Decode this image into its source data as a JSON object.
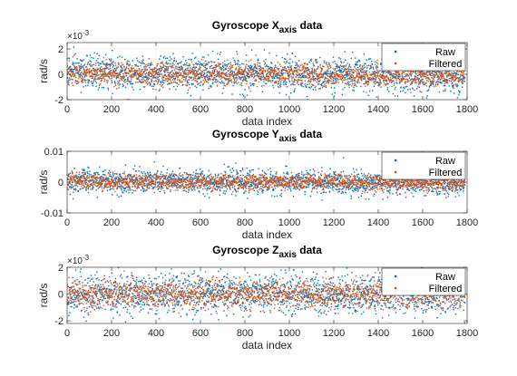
{
  "colors": {
    "raw": "#0072BD",
    "filtered": "#D95319",
    "axis": "#262626",
    "grid": "#e6e6e6"
  },
  "chart_data": [
    {
      "type": "scatter",
      "title": "Gyroscope X",
      "title_sub": "axis",
      "title_suffix": " data",
      "xlabel": "data index",
      "ylabel": "rad/s",
      "xlim": [
        0,
        1800
      ],
      "ylim": [
        -0.002,
        0.0025
      ],
      "x_ticks": [
        "0",
        "200",
        "400",
        "600",
        "800",
        "1000",
        "1200",
        "1400",
        "1600",
        "1800"
      ],
      "y_ticks": [
        {
          "value": -0.002,
          "label": "-2"
        },
        {
          "value": 0,
          "label": "0"
        },
        {
          "value": 0.002,
          "label": "2"
        }
      ],
      "exponent_label": "×10",
      "exponent_power": "-3",
      "legend_position": "top-right",
      "series": [
        {
          "name": "Raw",
          "points": 1790,
          "mean": 0.0002,
          "std_dev": 0.00065,
          "mean_end": -0.0002
        },
        {
          "name": "Filtered",
          "points": 1790,
          "mean": 0.0001,
          "std_dev": 0.00045,
          "mean_end": -0.0001
        }
      ]
    },
    {
      "type": "scatter",
      "title": "Gyroscope Y",
      "title_sub": "axis",
      "title_suffix": " data",
      "xlabel": "data index",
      "ylabel": "rad/s",
      "xlim": [
        0,
        1800
      ],
      "ylim": [
        -0.01,
        0.01
      ],
      "x_ticks": [
        "0",
        "200",
        "400",
        "600",
        "800",
        "1000",
        "1200",
        "1400",
        "1600",
        "1800"
      ],
      "y_ticks": [
        {
          "value": -0.01,
          "label": "-0.01"
        },
        {
          "value": 0,
          "label": "0"
        },
        {
          "value": 0.01,
          "label": "0.01"
        }
      ],
      "exponent_label": "",
      "exponent_power": "",
      "legend_position": "top-right",
      "series": [
        {
          "name": "Raw",
          "points": 1790,
          "mean": 0.0005,
          "std_dev": 0.0019,
          "mean_end": -0.0005
        },
        {
          "name": "Filtered",
          "points": 1790,
          "mean": 0.0003,
          "std_dev": 0.0013,
          "mean_end": -0.0003
        }
      ]
    },
    {
      "type": "scatter",
      "title": "Gyroscope Z",
      "title_sub": "axis",
      "title_suffix": " data",
      "xlabel": "data index",
      "ylabel": "rad/s",
      "xlim": [
        0,
        1800
      ],
      "ylim": [
        -0.0022,
        0.002
      ],
      "x_ticks": [
        "0",
        "200",
        "400",
        "600",
        "800",
        "1000",
        "1200",
        "1400",
        "1600",
        "1800"
      ],
      "y_ticks": [
        {
          "value": -0.002,
          "label": "-2"
        },
        {
          "value": 0,
          "label": "0"
        },
        {
          "value": 0.002,
          "label": "2"
        }
      ],
      "exponent_label": "×10",
      "exponent_power": "-3",
      "legend_position": "top-right",
      "series": [
        {
          "name": "Raw",
          "points": 1790,
          "mean": 0.0,
          "std_dev": 0.00075,
          "mean_end": 0.0
        },
        {
          "name": "Filtered",
          "points": 1790,
          "mean": 0.0,
          "std_dev": 0.00052,
          "mean_end": 0.0
        }
      ]
    }
  ]
}
